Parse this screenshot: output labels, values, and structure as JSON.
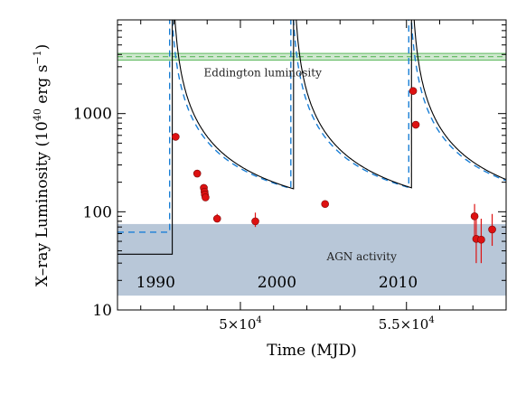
{
  "chart_data": {
    "type": "scatter",
    "xlabel": "Time (MJD)",
    "ylabel_main": "X–ray Luminosity (10",
    "ylabel_sup": "40",
    "ylabel_mid": " erg s",
    "ylabel_sup2": "−1",
    "ylabel_end": ")",
    "x_scale": "linear",
    "y_scale": "log",
    "xlim": [
      46300,
      58000
    ],
    "ylim": [
      10,
      9000
    ],
    "x_ticks": [
      {
        "value": 50000,
        "base": "5×10",
        "exp": "4"
      },
      {
        "value": 55000,
        "base": "5.5×10",
        "exp": "4"
      }
    ],
    "y_ticks": [
      {
        "value": 10,
        "label": "10"
      },
      {
        "value": 100,
        "label": "100"
      },
      {
        "value": 1000,
        "label": "1000"
      }
    ],
    "eddington_band": {
      "label": "Eddington luminosity",
      "low": 3500,
      "high": 4100,
      "center": 3800,
      "color": "#5cb85c"
    },
    "agn_band": {
      "label": "AGN activity",
      "low": 14,
      "high": 75,
      "color": "#b8c7d8"
    },
    "year_labels": [
      {
        "text": "1990",
        "x": 47450
      },
      {
        "text": "2000",
        "x": 51100
      },
      {
        "text": "2010",
        "x": 54750
      }
    ],
    "points": [
      {
        "x": 48050,
        "y": 580,
        "ylo": 580,
        "yhi": 580
      },
      {
        "x": 48700,
        "y": 245,
        "ylo": 245,
        "yhi": 245
      },
      {
        "x": 48900,
        "y": 175,
        "ylo": 170,
        "yhi": 180
      },
      {
        "x": 48920,
        "y": 160,
        "ylo": 155,
        "yhi": 165
      },
      {
        "x": 48930,
        "y": 150,
        "ylo": 145,
        "yhi": 155
      },
      {
        "x": 48950,
        "y": 140,
        "ylo": 135,
        "yhi": 145
      },
      {
        "x": 49300,
        "y": 85,
        "ylo": 78,
        "yhi": 95
      },
      {
        "x": 50450,
        "y": 80,
        "ylo": 70,
        "yhi": 98
      },
      {
        "x": 52550,
        "y": 120,
        "ylo": 115,
        "yhi": 125
      },
      {
        "x": 55200,
        "y": 1700,
        "ylo": 1700,
        "yhi": 1700
      },
      {
        "x": 55280,
        "y": 770,
        "ylo": 770,
        "yhi": 770
      },
      {
        "x": 57050,
        "y": 90,
        "ylo": 55,
        "yhi": 120
      },
      {
        "x": 57100,
        "y": 53,
        "ylo": 30,
        "yhi": 90
      },
      {
        "x": 57250,
        "y": 52,
        "ylo": 30,
        "yhi": 85
      },
      {
        "x": 57580,
        "y": 66,
        "ylo": 45,
        "yhi": 95
      }
    ],
    "cycles": [
      {
        "t0": 47950,
        "pre": 37
      },
      {
        "t0": 51600,
        "pre": 45
      },
      {
        "t0": 55150,
        "pre": 45
      }
    ],
    "colors": {
      "points": "#dd1111",
      "solid_model": "#000000",
      "dashed_model": "#1a7fd6"
    }
  }
}
